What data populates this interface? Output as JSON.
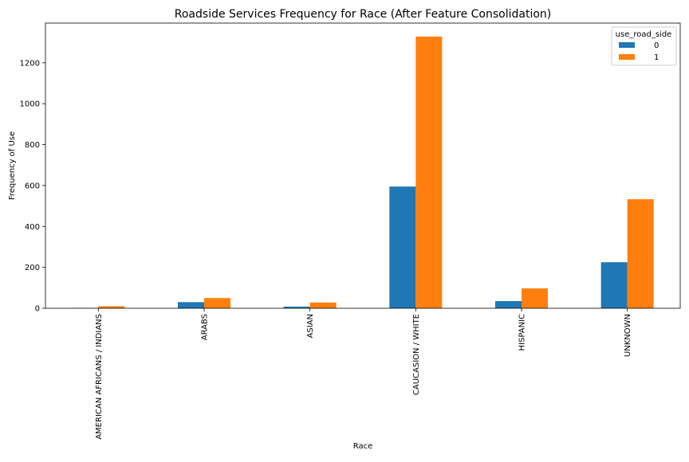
{
  "chart_data": {
    "type": "bar",
    "title": "Roadside Services Frequency for Race (After Feature Consolidation)",
    "xlabel": "Race",
    "ylabel": "Frequency of Use",
    "categories": [
      "AMERICAN AFRICANS / INDIANS",
      "ARABS",
      "ASIAN",
      "CAUCASION / WHITE",
      "HISPANIC",
      "UNKNOWN"
    ],
    "series": [
      {
        "name": "0",
        "color": "#1f77b4",
        "values": [
          2,
          30,
          8,
          595,
          35,
          225
        ]
      },
      {
        "name": "1",
        "color": "#ff7f0e",
        "values": [
          10,
          50,
          28,
          1328,
          97,
          533
        ]
      }
    ],
    "ylim": [
      0,
      1394
    ],
    "yticks": [
      0,
      200,
      400,
      600,
      800,
      1000,
      1200
    ],
    "legend": {
      "title": "use_road_side",
      "placement": "top-right"
    },
    "grid": false
  }
}
